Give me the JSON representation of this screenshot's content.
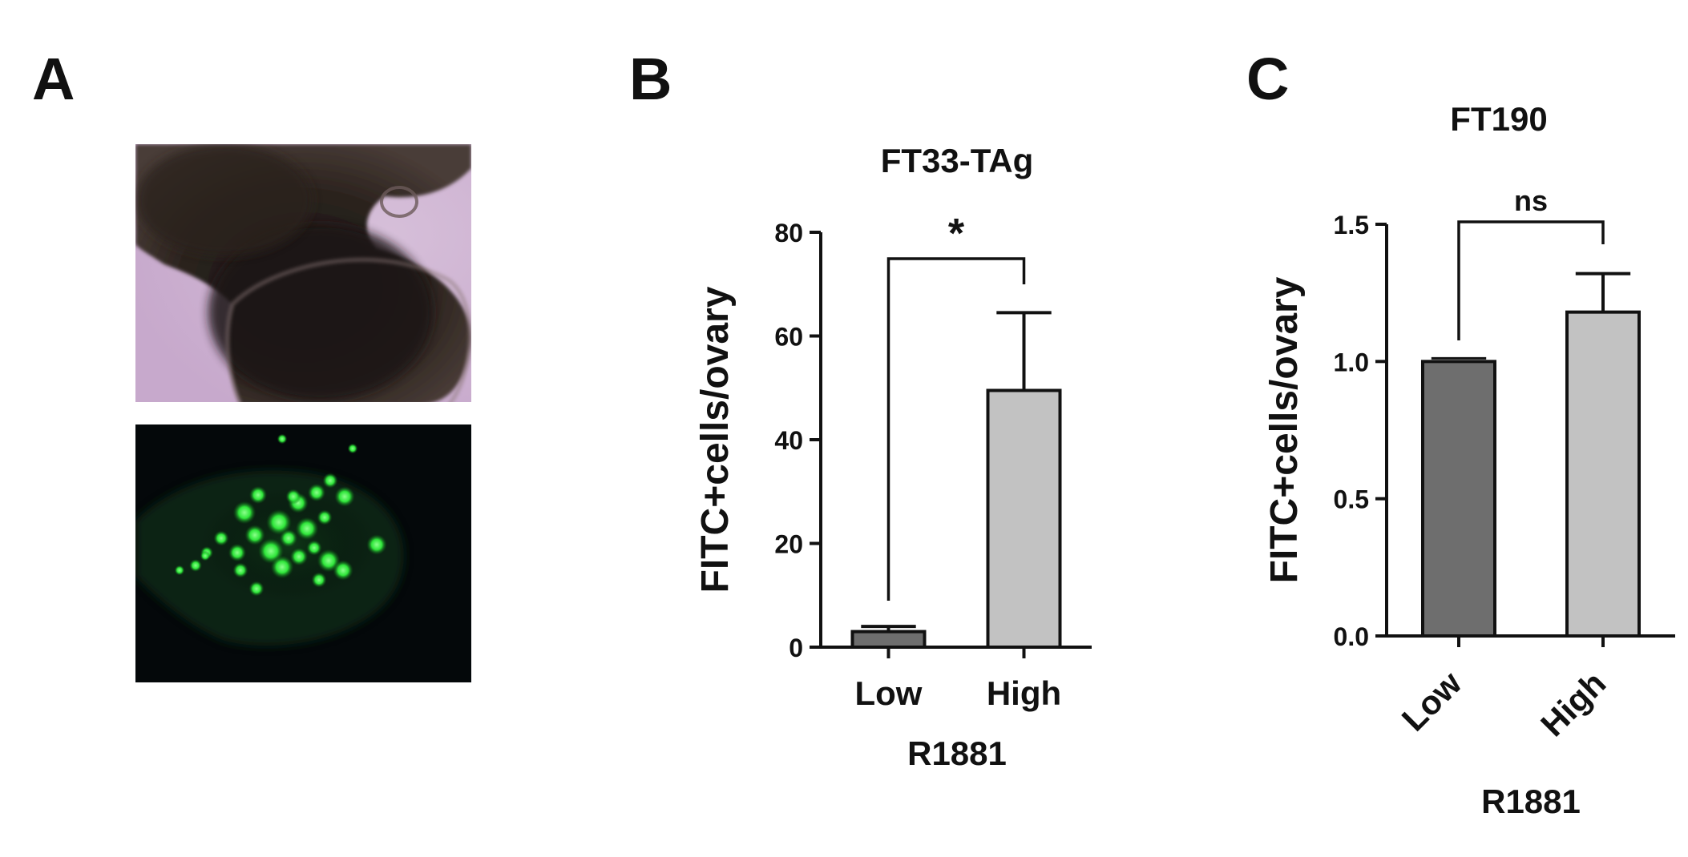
{
  "panels": {
    "a": {
      "letter": "A"
    },
    "b": {
      "letter": "B"
    },
    "c": {
      "letter": "C"
    }
  },
  "chart_data": [
    {
      "type": "bar",
      "title": "FT33-TAg",
      "xlabel": "R1881",
      "ylabel": "FITC+cells/ovary",
      "categories": [
        "Low",
        "High"
      ],
      "values": [
        3,
        49.5
      ],
      "errors": [
        1,
        15
      ],
      "ylim": [
        0,
        80
      ],
      "yticks": [
        0,
        20,
        40,
        60,
        80
      ],
      "ytick_labels": [
        "0",
        "20",
        "40",
        "60",
        "80"
      ],
      "bar_colors": [
        "#6e6e6e",
        "#c2c2c2"
      ],
      "significance": "*",
      "grid": false
    },
    {
      "type": "bar",
      "title": "FT190",
      "xlabel": "R1881",
      "ylabel": "FITC+cells/ovary",
      "categories": [
        "Low",
        "High"
      ],
      "values": [
        1.0,
        1.18
      ],
      "errors": [
        0,
        0.14
      ],
      "ylim": [
        0,
        1.5
      ],
      "yticks": [
        0,
        0.5,
        1.0,
        1.5
      ],
      "ytick_labels": [
        "0.0",
        "0.5",
        "1.0",
        "1.5"
      ],
      "bar_colors": [
        "#6e6e6e",
        "#c2c2c2"
      ],
      "significance": "ns",
      "grid": false
    }
  ]
}
